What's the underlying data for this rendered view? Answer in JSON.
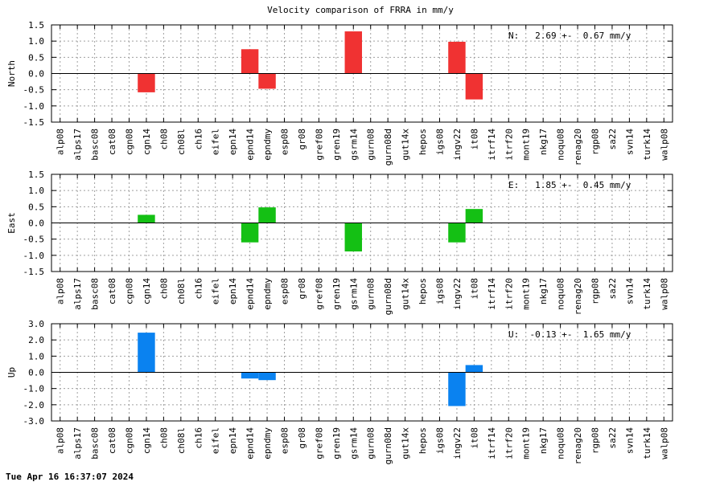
{
  "chart_data": {
    "title": "Velocity comparison of FRRA in mm/y",
    "categories": [
      "alp08",
      "alps17",
      "basc08",
      "cat08",
      "cgn08",
      "cgn14",
      "ch08",
      "ch08l",
      "ch16",
      "eifel",
      "epn14",
      "epnd14",
      "epndmy",
      "esp08",
      "gr08",
      "gref08",
      "gren19",
      "gsrm14",
      "gurn08",
      "gurn08d",
      "gut14x",
      "hepos",
      "igs08",
      "ingv22",
      "it08",
      "itrf14",
      "itrf20",
      "mont19",
      "nkg17",
      "noqu08",
      "renag20",
      "rgp08",
      "sa22",
      "svn14",
      "turk14",
      "walp08"
    ],
    "panels": [
      {
        "type": "bar",
        "ylabel": "North",
        "ylim": [
          -1.5,
          1.5
        ],
        "yticks": [
          "-1.5",
          "-1.0",
          "-0.5",
          "0.0",
          "0.5",
          "1.0",
          "1.5"
        ],
        "color": "#f03232",
        "stats": "N:   2.69 +-  0.67 mm/y",
        "values": {
          "cgn14": -0.58,
          "epnd14": 0.75,
          "epndmy": -0.47,
          "gsrm14": 1.3,
          "ingv22": 0.98,
          "it08": -0.8
        }
      },
      {
        "type": "bar",
        "ylabel": "East",
        "ylim": [
          -1.5,
          1.5
        ],
        "yticks": [
          "-1.5",
          "-1.0",
          "-0.5",
          "0.0",
          "0.5",
          "1.0",
          "1.5"
        ],
        "color": "#14c014",
        "stats": "E:   1.85 +-  0.45 mm/y",
        "values": {
          "cgn14": 0.25,
          "epnd14": -0.6,
          "epndmy": 0.48,
          "gsrm14": -0.88,
          "ingv22": -0.6,
          "it08": 0.43
        }
      },
      {
        "type": "bar",
        "ylabel": "Up",
        "ylim": [
          -3.0,
          3.0
        ],
        "yticks": [
          "-3.0",
          "-2.0",
          "-1.0",
          "0.0",
          "1.0",
          "2.0",
          "3.0"
        ],
        "color": "#0a82f0",
        "stats": "U:  -0.13 +-  1.65 mm/y",
        "values": {
          "cgn14": 2.45,
          "epnd14": -0.38,
          "epndmy": -0.48,
          "ingv22": -2.08,
          "it08": 0.45
        }
      }
    ],
    "grid": true
  },
  "footer": {
    "timestamp": "Tue Apr 16 16:37:07 2024"
  }
}
